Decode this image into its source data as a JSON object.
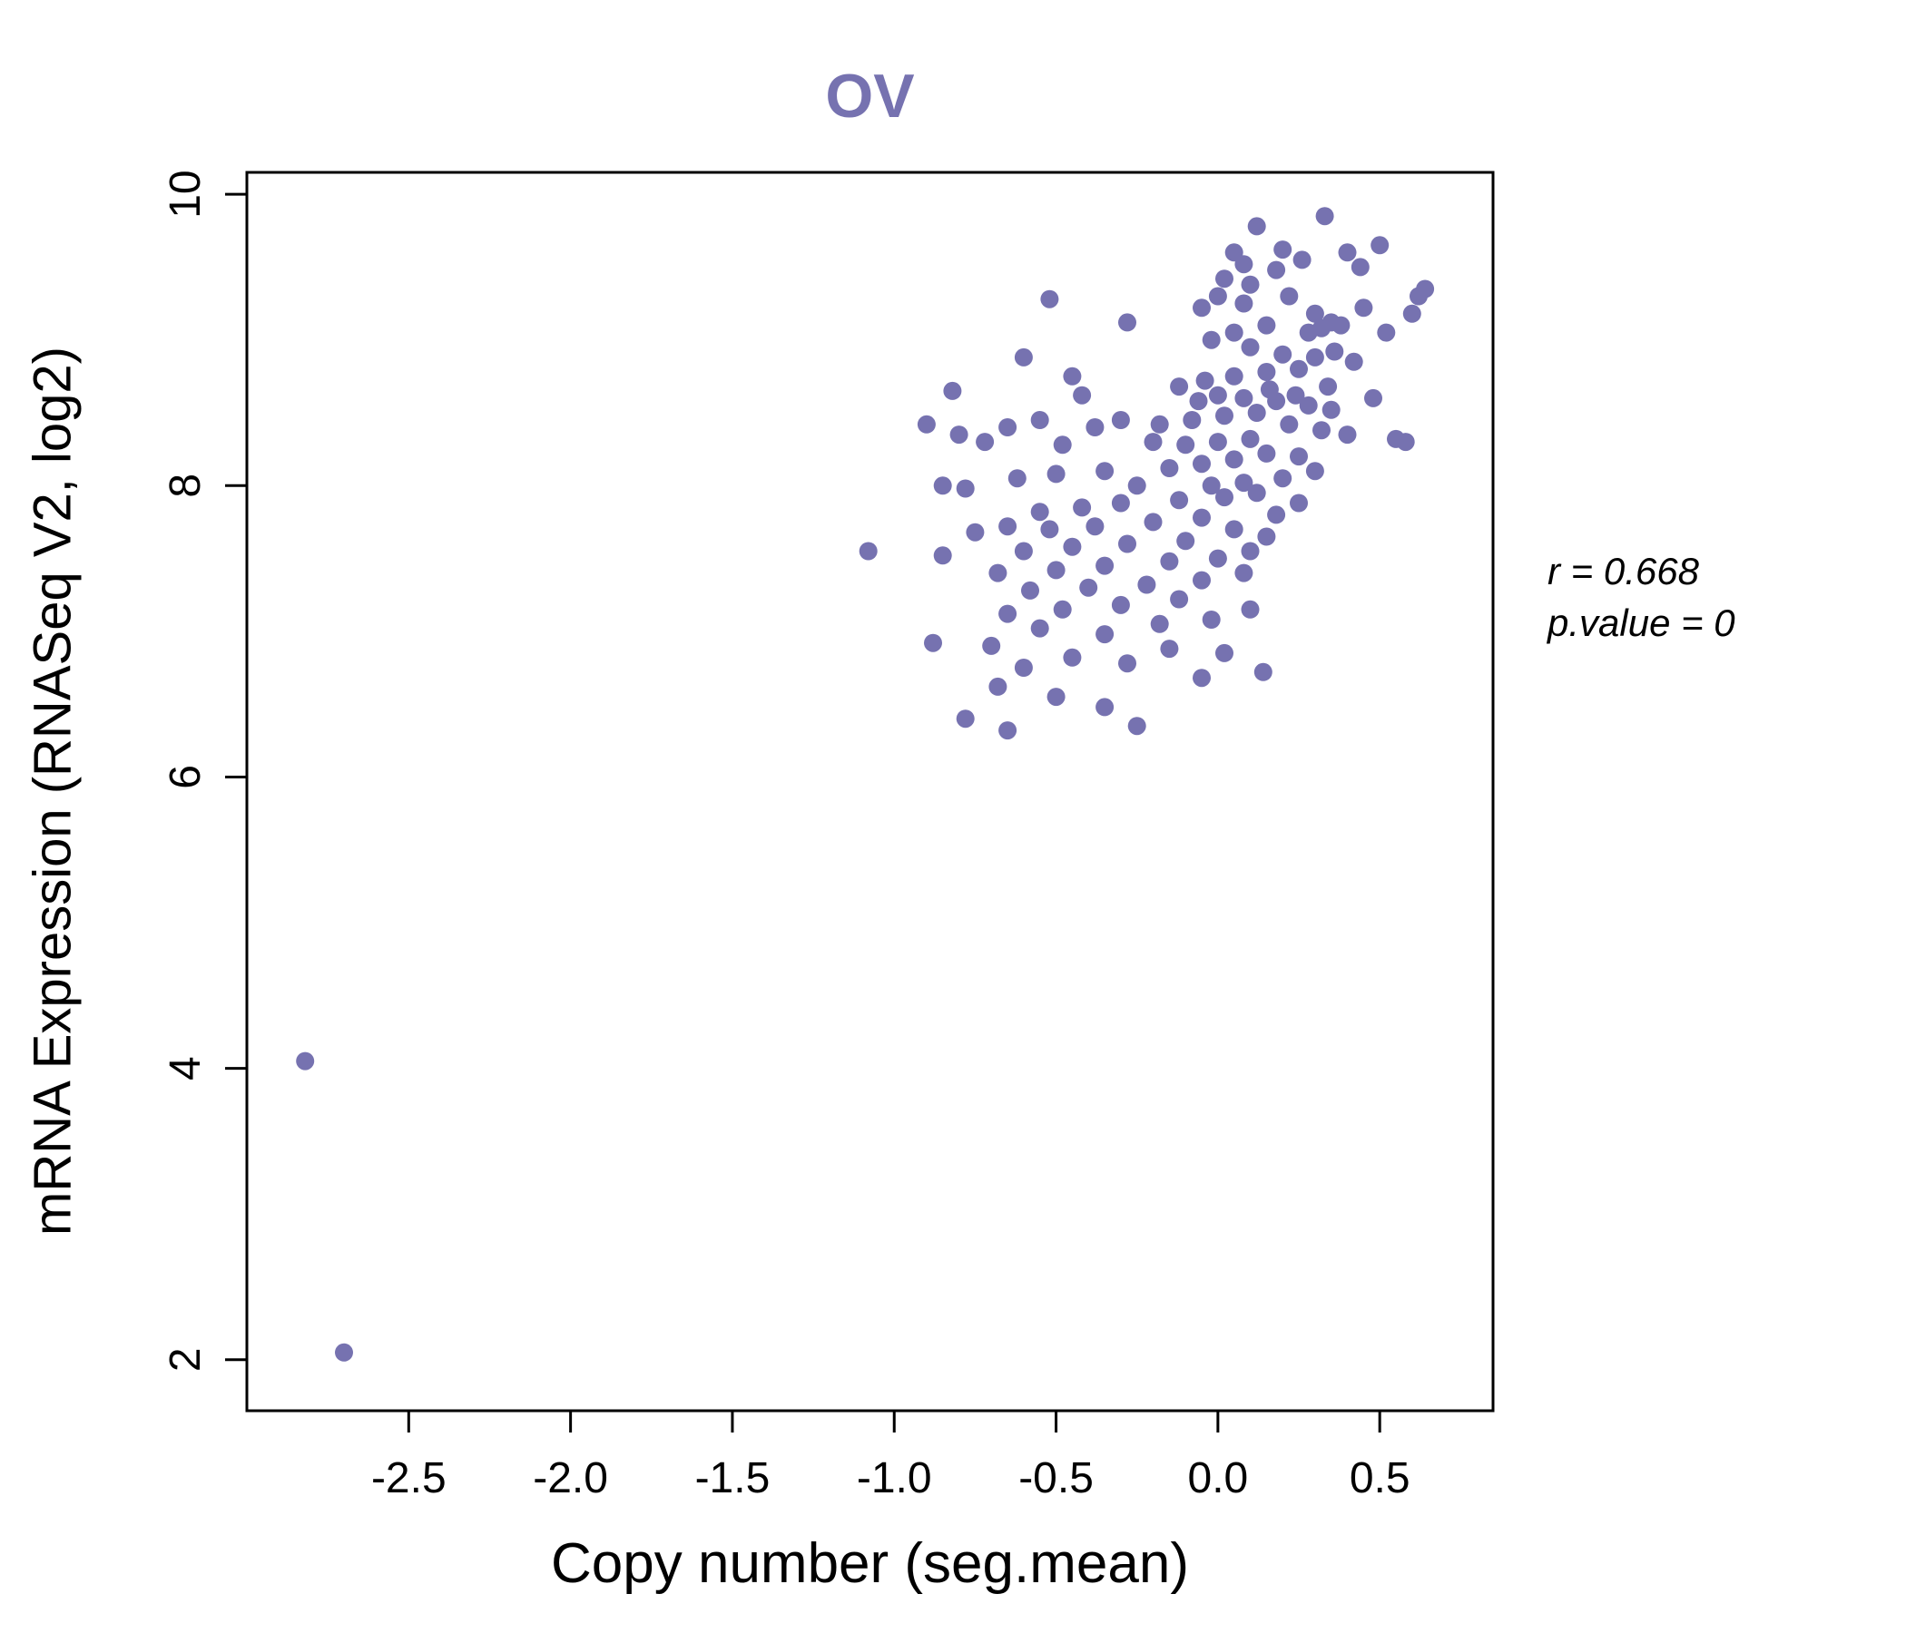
{
  "chart_data": {
    "type": "scatter",
    "title": "OV",
    "title_color": "#7672b0",
    "xlabel": "Copy number (seg.mean)",
    "ylabel": "mRNA Expression (RNASeq V2, log2)",
    "xlim": [
      -3.0,
      0.85
    ],
    "ylim": [
      1.65,
      10.15
    ],
    "grid": false,
    "legend": null,
    "point_color": "#7672b0",
    "point_radius": 10,
    "stats": {
      "r": 0.668,
      "p_value": 0
    },
    "annotations": [
      {
        "text": "r = 0.668",
        "italic": true
      },
      {
        "text": "p.value = 0",
        "italic": true
      }
    ],
    "xticks": [
      {
        "value": -2.5,
        "label": "-2.5"
      },
      {
        "value": -2.0,
        "label": "-2.0"
      },
      {
        "value": -1.5,
        "label": "-1.5"
      },
      {
        "value": -1.0,
        "label": "-1.0"
      },
      {
        "value": -0.5,
        "label": "-0.5"
      },
      {
        "value": 0.0,
        "label": "0.0"
      },
      {
        "value": 0.5,
        "label": "0.5"
      }
    ],
    "yticks": [
      {
        "value": 2,
        "label": "2"
      },
      {
        "value": 4,
        "label": "4"
      },
      {
        "value": 6,
        "label": "6"
      },
      {
        "value": 8,
        "label": "8"
      },
      {
        "value": 10,
        "label": "10"
      }
    ],
    "points": [
      [
        -2.82,
        4.05
      ],
      [
        -2.7,
        2.05
      ],
      [
        0.12,
        9.78
      ],
      [
        0.33,
        9.85
      ],
      [
        0.05,
        9.6
      ],
      [
        0.2,
        9.62
      ],
      [
        0.26,
        9.55
      ],
      [
        0.08,
        9.52
      ],
      [
        0.18,
        9.48
      ],
      [
        0.5,
        9.65
      ],
      [
        0.02,
        9.42
      ],
      [
        0.1,
        9.38
      ],
      [
        0.22,
        9.3
      ],
      [
        -0.52,
        9.28
      ],
      [
        0.3,
        9.18
      ],
      [
        0.35,
        9.12
      ],
      [
        0.62,
        9.3
      ],
      [
        0.64,
        9.35
      ],
      [
        0.6,
        9.18
      ],
      [
        -0.28,
        9.12
      ],
      [
        0.08,
        9.25
      ],
      [
        0.0,
        9.3
      ],
      [
        -0.05,
        9.22
      ],
      [
        0.15,
        9.1
      ],
      [
        0.05,
        9.05
      ],
      [
        -0.02,
        9.0
      ],
      [
        0.28,
        9.05
      ],
      [
        0.32,
        9.08
      ],
      [
        0.38,
        9.1
      ],
      [
        0.45,
        9.22
      ],
      [
        0.52,
        9.05
      ],
      [
        0.1,
        8.95
      ],
      [
        0.2,
        8.9
      ],
      [
        0.3,
        8.88
      ],
      [
        0.36,
        8.92
      ],
      [
        0.42,
        8.85
      ],
      [
        0.25,
        8.8
      ],
      [
        0.15,
        8.78
      ],
      [
        0.05,
        8.75
      ],
      [
        -0.04,
        8.72
      ],
      [
        -0.12,
        8.68
      ],
      [
        -0.45,
        8.75
      ],
      [
        -0.6,
        8.88
      ],
      [
        -0.42,
        8.62
      ],
      [
        0.0,
        8.62
      ],
      [
        0.08,
        8.6
      ],
      [
        0.18,
        8.58
      ],
      [
        0.28,
        8.55
      ],
      [
        0.35,
        8.52
      ],
      [
        0.48,
        8.6
      ],
      [
        0.12,
        8.5
      ],
      [
        0.02,
        8.48
      ],
      [
        -0.08,
        8.45
      ],
      [
        -0.18,
        8.42
      ],
      [
        -0.3,
        8.45
      ],
      [
        -0.38,
        8.4
      ],
      [
        -0.55,
        8.45
      ],
      [
        -0.65,
        8.4
      ],
      [
        0.22,
        8.42
      ],
      [
        0.32,
        8.38
      ],
      [
        0.4,
        8.35
      ],
      [
        0.55,
        8.32
      ],
      [
        0.1,
        8.32
      ],
      [
        0.0,
        8.3
      ],
      [
        -0.1,
        8.28
      ],
      [
        -0.2,
        8.3
      ],
      [
        -0.48,
        8.28
      ],
      [
        -0.72,
        8.3
      ],
      [
        -0.8,
        8.35
      ],
      [
        0.15,
        8.22
      ],
      [
        0.25,
        8.2
      ],
      [
        0.05,
        8.18
      ],
      [
        -0.05,
        8.15
      ],
      [
        -0.15,
        8.12
      ],
      [
        -0.35,
        8.1
      ],
      [
        -0.5,
        8.08
      ],
      [
        -0.62,
        8.05
      ],
      [
        0.3,
        8.1
      ],
      [
        0.2,
        8.05
      ],
      [
        0.08,
        8.02
      ],
      [
        -0.02,
        8.0
      ],
      [
        -0.25,
        8.0
      ],
      [
        -0.78,
        7.98
      ],
      [
        -0.85,
        8.0
      ],
      [
        0.12,
        7.95
      ],
      [
        0.02,
        7.92
      ],
      [
        -0.12,
        7.9
      ],
      [
        -0.3,
        7.88
      ],
      [
        -0.42,
        7.85
      ],
      [
        -0.55,
        7.82
      ],
      [
        0.25,
        7.88
      ],
      [
        0.18,
        7.8
      ],
      [
        -0.05,
        7.78
      ],
      [
        -0.2,
        7.75
      ],
      [
        -0.38,
        7.72
      ],
      [
        -0.52,
        7.7
      ],
      [
        -0.65,
        7.72
      ],
      [
        -0.75,
        7.68
      ],
      [
        0.05,
        7.7
      ],
      [
        0.15,
        7.65
      ],
      [
        -0.1,
        7.62
      ],
      [
        -0.28,
        7.6
      ],
      [
        -0.45,
        7.58
      ],
      [
        -0.6,
        7.55
      ],
      [
        -1.08,
        7.55
      ],
      [
        -0.85,
        7.52
      ],
      [
        0.1,
        7.55
      ],
      [
        0.0,
        7.5
      ],
      [
        -0.15,
        7.48
      ],
      [
        -0.35,
        7.45
      ],
      [
        -0.5,
        7.42
      ],
      [
        -0.68,
        7.4
      ],
      [
        0.08,
        7.4
      ],
      [
        -0.05,
        7.35
      ],
      [
        -0.22,
        7.32
      ],
      [
        -0.4,
        7.3
      ],
      [
        -0.58,
        7.28
      ],
      [
        -0.12,
        7.22
      ],
      [
        -0.3,
        7.18
      ],
      [
        -0.48,
        7.15
      ],
      [
        -0.65,
        7.12
      ],
      [
        0.1,
        7.15
      ],
      [
        -0.02,
        7.08
      ],
      [
        -0.18,
        7.05
      ],
      [
        -0.55,
        7.02
      ],
      [
        -0.35,
        6.98
      ],
      [
        -0.88,
        6.92
      ],
      [
        -0.7,
        6.9
      ],
      [
        -0.15,
        6.88
      ],
      [
        0.02,
        6.85
      ],
      [
        -0.45,
        6.82
      ],
      [
        -0.28,
        6.78
      ],
      [
        -0.6,
        6.75
      ],
      [
        0.14,
        6.72
      ],
      [
        -0.05,
        6.68
      ],
      [
        -0.68,
        6.62
      ],
      [
        -0.5,
        6.55
      ],
      [
        -0.35,
        6.48
      ],
      [
        -0.78,
        6.4
      ],
      [
        -0.25,
        6.35
      ],
      [
        -0.65,
        6.32
      ],
      [
        0.58,
        8.3
      ],
      [
        0.44,
        9.5
      ],
      [
        0.4,
        9.6
      ],
      [
        -0.9,
        8.42
      ],
      [
        -0.82,
        8.65
      ],
      [
        0.34,
        8.68
      ],
      [
        0.16,
        8.66
      ],
      [
        -0.06,
        8.58
      ],
      [
        0.24,
        8.62
      ]
    ]
  }
}
